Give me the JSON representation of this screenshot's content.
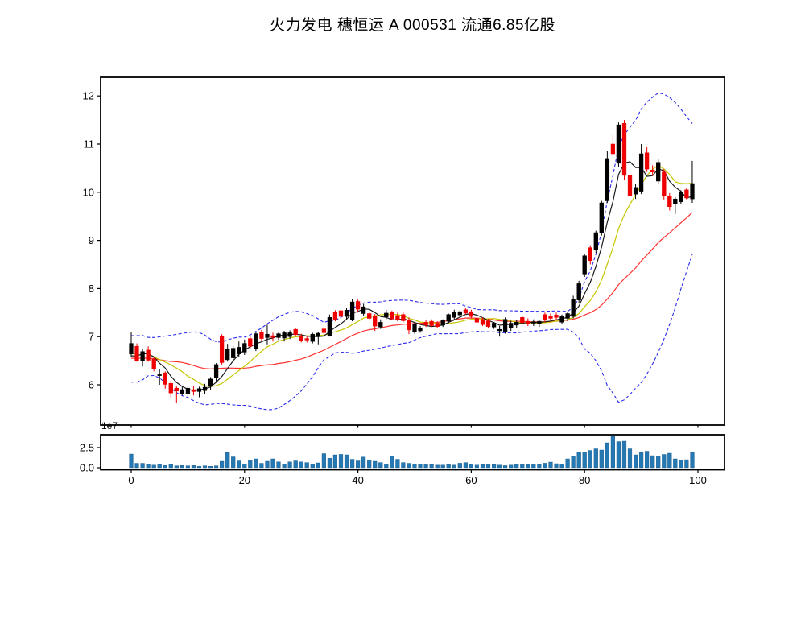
{
  "title": "火力发电 穗恒运 A  000531 流通6.85亿股",
  "chart_data": {
    "type": "candlestick+volume",
    "panels": [
      "price",
      "volume"
    ],
    "x_axis": {
      "ticks": [
        0,
        20,
        40,
        60,
        80,
        100
      ],
      "range": [
        -5.4,
        104.7
      ],
      "grid": false
    },
    "price_axis": {
      "ticks": [
        6,
        7,
        8,
        9,
        10,
        11,
        12
      ],
      "range": [
        5.16,
        12.39
      ],
      "grid": false
    },
    "volume_axis": {
      "tick_values": [
        0.0,
        2.5
      ],
      "tick_labels": [
        "0.0",
        "2.5"
      ],
      "offset_label": "1e7",
      "range": [
        -0.25,
        4.15
      ]
    },
    "overlays": {
      "ma_fast_period": 5,
      "ma_mid_period": 10,
      "ma_slow_period": 25,
      "bollinger_period": 20,
      "bollinger_k": 2
    },
    "style": {
      "up_color": "#000000",
      "down_color": "#ee0000",
      "ma_fast_color": "#1a1a1a",
      "ma_mid_color": "#c6c600",
      "ma_slow_color": "#ff3030",
      "band_color": "#2a2aee",
      "volume_color": "#2678b2",
      "background": "#ffffff",
      "axis_color": "#000000"
    },
    "candles": {
      "open": [
        6.64,
        6.8,
        6.49,
        6.72,
        6.53,
        6.2,
        6.25,
        6.03,
        5.93,
        5.82,
        5.82,
        5.9,
        5.86,
        5.88,
        5.97,
        6.14,
        7.0,
        6.52,
        6.56,
        6.64,
        6.68,
        6.96,
        6.74,
        7.1,
        6.98,
        7.02,
        6.98,
        6.97,
        7.0,
        7.15,
        7.0,
        6.96,
        6.9,
        7.0,
        7.16,
        7.02,
        7.51,
        7.54,
        7.42,
        7.35,
        7.73,
        7.48,
        7.48,
        7.43,
        7.2,
        7.41,
        7.51,
        7.44,
        7.46,
        7.35,
        7.1,
        7.12,
        7.3,
        7.32,
        7.28,
        7.24,
        7.32,
        7.4,
        7.45,
        7.56,
        7.52,
        7.38,
        7.36,
        7.33,
        7.2,
        7.12,
        7.1,
        7.18,
        7.24,
        7.4,
        7.32,
        7.28,
        7.26,
        7.46,
        7.42,
        7.45,
        7.3,
        7.38,
        7.42,
        7.76,
        8.3,
        8.85,
        8.8,
        9.15,
        9.82,
        11.0,
        10.6,
        11.43,
        10.35,
        9.96,
        10.02,
        10.82,
        10.46,
        10.23,
        10.42,
        9.92,
        9.76,
        9.8,
        10.05,
        9.86
      ],
      "high": [
        7.1,
        6.86,
        6.75,
        6.8,
        6.58,
        6.33,
        6.28,
        6.08,
        5.98,
        5.95,
        5.96,
        5.98,
        5.96,
        6.02,
        6.16,
        6.45,
        7.05,
        6.85,
        6.8,
        6.9,
        6.94,
        7.0,
        7.1,
        7.14,
        7.25,
        7.08,
        7.1,
        7.12,
        7.13,
        7.18,
        7.06,
        7.02,
        7.08,
        7.1,
        7.2,
        7.46,
        7.55,
        7.7,
        7.6,
        7.78,
        7.77,
        7.68,
        7.52,
        7.47,
        7.36,
        7.56,
        7.54,
        7.5,
        7.5,
        7.4,
        7.28,
        7.22,
        7.34,
        7.36,
        7.32,
        7.36,
        7.48,
        7.56,
        7.55,
        7.6,
        7.56,
        7.42,
        7.4,
        7.37,
        7.3,
        7.22,
        7.4,
        7.33,
        7.34,
        7.44,
        7.38,
        7.36,
        7.35,
        7.5,
        7.48,
        7.5,
        7.46,
        7.52,
        7.85,
        8.16,
        8.72,
        8.9,
        9.2,
        9.82,
        10.85,
        11.2,
        11.45,
        11.5,
        10.55,
        10.18,
        11.0,
        10.95,
        10.56,
        10.68,
        10.48,
        9.98,
        9.9,
        10.04,
        10.08,
        10.65
      ],
      "low": [
        6.58,
        6.48,
        6.38,
        6.48,
        6.28,
        6.0,
        5.92,
        5.72,
        5.62,
        5.78,
        5.76,
        5.78,
        5.74,
        5.8,
        5.9,
        6.06,
        6.42,
        6.48,
        6.52,
        6.58,
        6.62,
        6.76,
        6.7,
        6.92,
        6.84,
        6.9,
        6.93,
        6.9,
        6.95,
        7.0,
        6.88,
        6.88,
        6.86,
        6.84,
        7.04,
        7.0,
        7.32,
        7.38,
        7.36,
        7.32,
        7.5,
        7.44,
        7.33,
        7.12,
        7.16,
        7.36,
        7.34,
        7.32,
        7.3,
        7.05,
        7.06,
        7.08,
        7.2,
        7.2,
        7.18,
        7.2,
        7.28,
        7.36,
        7.4,
        7.46,
        7.38,
        7.26,
        7.22,
        7.18,
        7.16,
        7.0,
        7.06,
        7.12,
        7.18,
        7.26,
        7.22,
        7.22,
        7.2,
        7.3,
        7.34,
        7.34,
        7.26,
        7.32,
        7.38,
        7.7,
        8.24,
        8.5,
        8.74,
        9.1,
        9.78,
        10.75,
        10.52,
        10.25,
        9.8,
        9.86,
        9.96,
        10.42,
        10.34,
        10.18,
        9.85,
        9.62,
        9.55,
        9.76,
        9.84,
        9.78
      ],
      "close": [
        6.86,
        6.5,
        6.69,
        6.51,
        6.33,
        6.21,
        6.01,
        5.83,
        5.87,
        5.9,
        5.93,
        5.86,
        5.92,
        5.95,
        6.12,
        6.42,
        6.46,
        6.74,
        6.76,
        6.78,
        6.86,
        6.8,
        7.06,
        6.96,
        7.05,
        6.98,
        7.06,
        7.08,
        7.08,
        7.04,
        6.92,
        6.93,
        7.05,
        7.07,
        7.08,
        7.4,
        7.36,
        7.42,
        7.55,
        7.72,
        7.57,
        7.62,
        7.38,
        7.22,
        7.3,
        7.49,
        7.37,
        7.36,
        7.33,
        7.14,
        7.26,
        7.18,
        7.24,
        7.23,
        7.21,
        7.34,
        7.46,
        7.5,
        7.52,
        7.49,
        7.42,
        7.3,
        7.25,
        7.21,
        7.28,
        7.15,
        7.36,
        7.28,
        7.3,
        7.29,
        7.27,
        7.31,
        7.32,
        7.34,
        7.38,
        7.4,
        7.42,
        7.48,
        7.78,
        8.1,
        8.68,
        8.58,
        9.16,
        9.78,
        10.7,
        10.8,
        11.4,
        10.35,
        9.92,
        10.1,
        10.8,
        10.48,
        10.42,
        10.62,
        9.92,
        9.7,
        9.86,
        10.0,
        9.88,
        10.18
      ]
    },
    "volume_1e7": [
      1.7,
      0.55,
      0.55,
      0.42,
      0.32,
      0.42,
      0.28,
      0.4,
      0.24,
      0.28,
      0.24,
      0.28,
      0.18,
      0.24,
      0.18,
      0.24,
      0.8,
      1.9,
      1.35,
      0.85,
      0.48,
      0.95,
      1.1,
      0.55,
      0.8,
      1.1,
      0.72,
      0.42,
      0.72,
      0.85,
      0.72,
      0.64,
      0.42,
      0.6,
      1.75,
      1.18,
      1.6,
      1.66,
      1.6,
      1.05,
      0.85,
      1.33,
      0.95,
      0.8,
      0.64,
      0.48,
      1.43,
      1.05,
      0.64,
      0.55,
      0.48,
      0.42,
      0.48,
      0.38,
      0.32,
      0.32,
      0.38,
      0.32,
      0.56,
      0.64,
      0.48,
      0.32,
      0.38,
      0.44,
      0.38,
      0.32,
      0.26,
      0.32,
      0.44,
      0.38,
      0.38,
      0.44,
      0.38,
      0.56,
      0.7,
      0.5,
      0.44,
      1.1,
      1.43,
      1.95,
      1.95,
      2.15,
      2.35,
      2.2,
      3.1,
      3.95,
      3.25,
      3.3,
      2.35,
      1.6,
      1.9,
      2.05,
      1.5,
      1.43,
      1.65,
      1.8,
      1.1,
      0.9,
      1.0,
      1.95
    ]
  }
}
